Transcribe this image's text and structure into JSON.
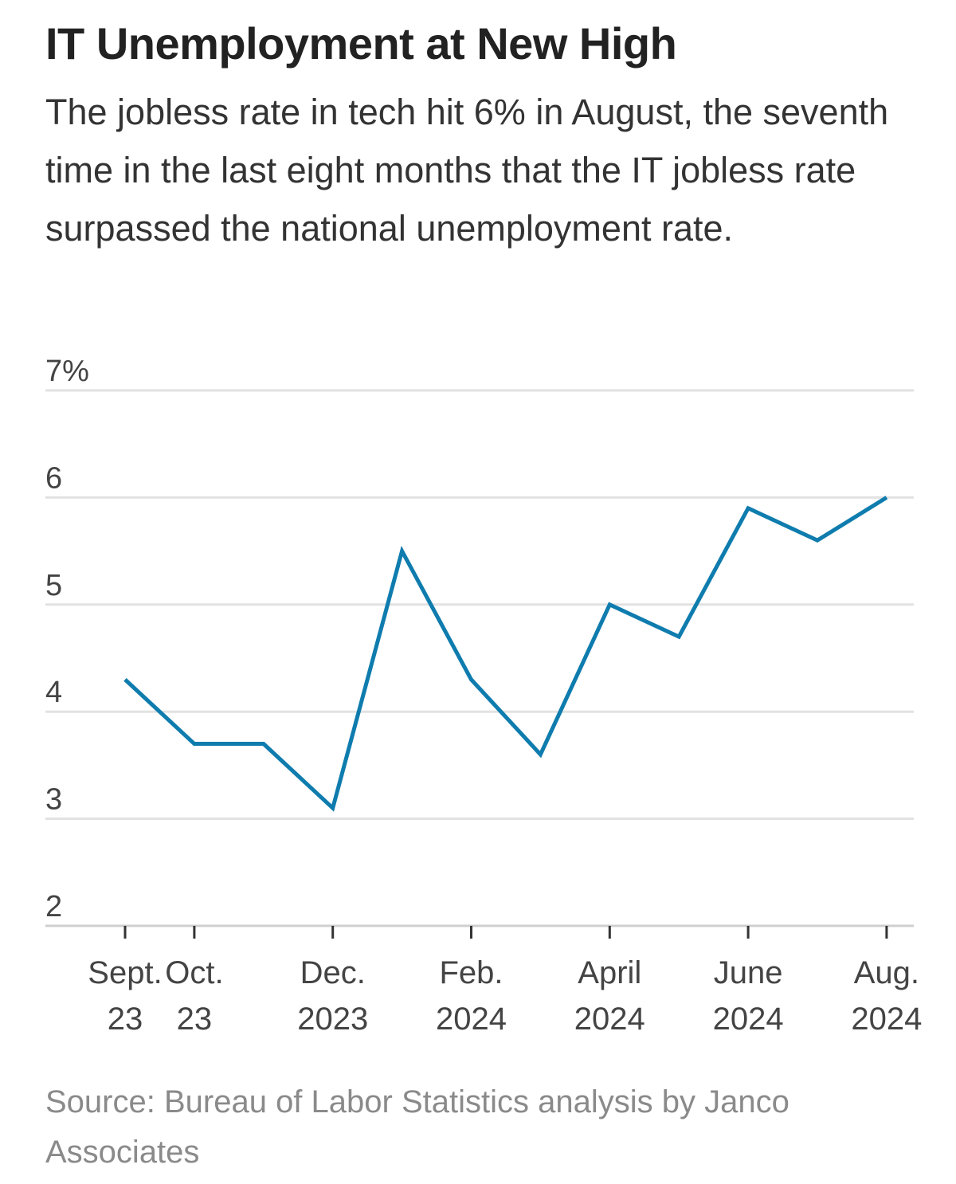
{
  "header": {
    "title": "IT Unemployment at New High",
    "subtitle": "The jobless rate in tech hit 6% in August, the seventh time in the last eight months that the IT jobless rate surpassed the national unemployment rate."
  },
  "source": "Source: Bureau of Labor Statistics analysis by Janco Associates",
  "chart_data": {
    "type": "line",
    "title": "IT Unemployment at New High",
    "xlabel": "",
    "ylabel": "",
    "ylim": [
      2,
      7
    ],
    "yticks": [
      2,
      3,
      4,
      5,
      6,
      7
    ],
    "ytick_labels": [
      "2",
      "3",
      "4",
      "5",
      "6",
      "7%"
    ],
    "grid": true,
    "x": [
      "Sept. 2023",
      "Oct. 2023",
      "Nov. 2023",
      "Dec. 2023",
      "Jan. 2024",
      "Feb. 2024",
      "March 2024",
      "April 2024",
      "May 2024",
      "June 2024",
      "July 2024",
      "Aug. 2024"
    ],
    "xticks": [
      {
        "index": 0,
        "line1": "Sept.",
        "line2": "23"
      },
      {
        "index": 1,
        "line1": "Oct.",
        "line2": "23"
      },
      {
        "index": 3,
        "line1": "Dec.",
        "line2": "2023"
      },
      {
        "index": 5,
        "line1": "Feb.",
        "line2": "2024"
      },
      {
        "index": 7,
        "line1": "April",
        "line2": "2024"
      },
      {
        "index": 9,
        "line1": "June",
        "line2": "2024"
      },
      {
        "index": 11,
        "line1": "Aug.",
        "line2": "2024"
      }
    ],
    "series": [
      {
        "name": "IT unemployment rate",
        "color": "#0f7cae",
        "values": [
          4.3,
          3.7,
          3.7,
          3.1,
          5.5,
          4.3,
          3.6,
          5.0,
          4.7,
          5.9,
          5.6,
          6.0
        ]
      }
    ]
  }
}
